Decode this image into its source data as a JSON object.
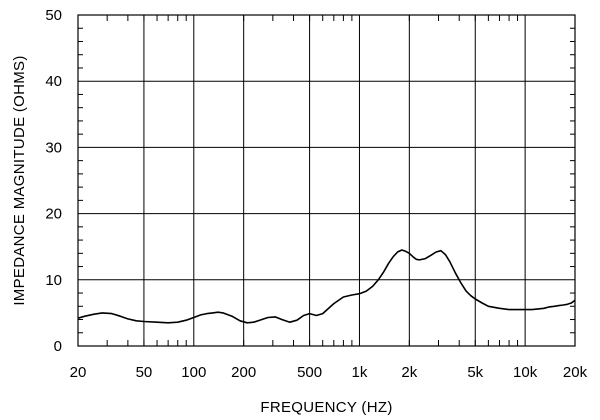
{
  "chart_data": {
    "type": "line",
    "xlabel": "FREQUENCY  (HZ)",
    "ylabel": "IMPEDANCE MAGNITUDE  (OHMS)",
    "x_scale": "log",
    "xlim": [
      20,
      20000
    ],
    "ylim": [
      0,
      50
    ],
    "grid": true,
    "x_ticks": [
      {
        "value": 20,
        "label": "20"
      },
      {
        "value": 50,
        "label": "50"
      },
      {
        "value": 100,
        "label": "100"
      },
      {
        "value": 200,
        "label": "200"
      },
      {
        "value": 500,
        "label": "500"
      },
      {
        "value": 1000,
        "label": "1k"
      },
      {
        "value": 2000,
        "label": "2k"
      },
      {
        "value": 5000,
        "label": "5k"
      },
      {
        "value": 10000,
        "label": "10k"
      },
      {
        "value": 20000,
        "label": "20k"
      }
    ],
    "y_ticks": [
      {
        "value": 0,
        "label": "0"
      },
      {
        "value": 10,
        "label": "10"
      },
      {
        "value": 20,
        "label": "20"
      },
      {
        "value": 30,
        "label": "30"
      },
      {
        "value": 40,
        "label": "40"
      },
      {
        "value": 50,
        "label": "50"
      }
    ],
    "series": [
      {
        "color": "#000000",
        "x": [
          20,
          22,
          25,
          28,
          32,
          36,
          40,
          45,
          50,
          60,
          70,
          80,
          90,
          100,
          110,
          120,
          130,
          140,
          150,
          170,
          190,
          210,
          230,
          250,
          280,
          310,
          340,
          380,
          420,
          460,
          500,
          550,
          600,
          700,
          800,
          900,
          1000,
          1100,
          1200,
          1300,
          1400,
          1500,
          1600,
          1700,
          1800,
          1900,
          2000,
          2100,
          2200,
          2300,
          2500,
          2700,
          2900,
          3100,
          3300,
          3500,
          3800,
          4100,
          4400,
          4700,
          5000,
          5500,
          6000,
          7000,
          8000,
          9000,
          10000,
          11000,
          12000,
          13000,
          14000,
          15000,
          16000,
          17000,
          18000,
          19000,
          20000
        ],
        "y": [
          4.2,
          4.5,
          4.8,
          5.0,
          4.9,
          4.5,
          4.1,
          3.8,
          3.7,
          3.6,
          3.5,
          3.6,
          3.9,
          4.3,
          4.7,
          4.9,
          5.0,
          5.1,
          5.0,
          4.5,
          3.8,
          3.5,
          3.6,
          3.9,
          4.3,
          4.4,
          4.0,
          3.6,
          3.9,
          4.6,
          4.9,
          4.6,
          4.9,
          6.4,
          7.4,
          7.7,
          7.9,
          8.3,
          9.0,
          10.0,
          11.2,
          12.5,
          13.5,
          14.2,
          14.5,
          14.3,
          14.0,
          13.5,
          13.1,
          13.0,
          13.2,
          13.7,
          14.2,
          14.4,
          13.8,
          12.8,
          11.0,
          9.5,
          8.3,
          7.6,
          7.1,
          6.5,
          6.0,
          5.7,
          5.5,
          5.5,
          5.5,
          5.5,
          5.6,
          5.7,
          5.9,
          6.0,
          6.1,
          6.2,
          6.3,
          6.5,
          6.9
        ]
      }
    ]
  }
}
